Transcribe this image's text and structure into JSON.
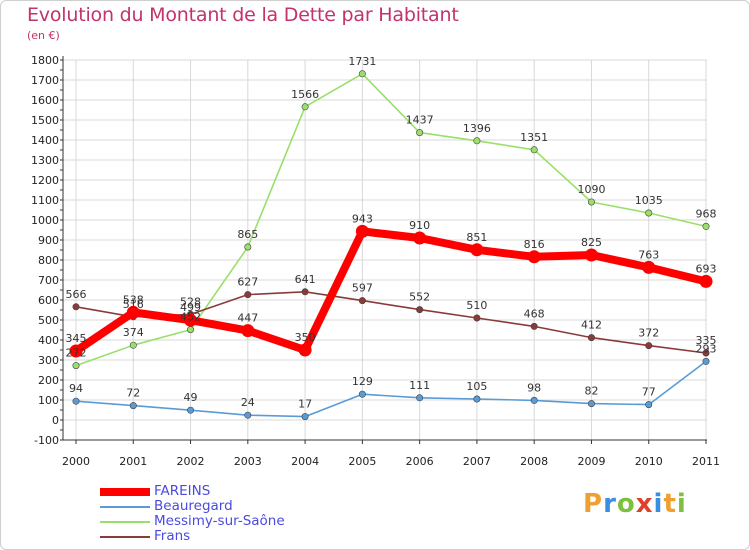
{
  "header": {
    "title": "Evolution du Montant de la Dette par Habitant",
    "subtitle": "(en €)"
  },
  "logo": {
    "text": "Proxiti",
    "colors": [
      "#f0a030",
      "#3a8ee0",
      "#7cc040",
      "#e0402a",
      "#3a8ee0",
      "#f0a030",
      "#7cc040"
    ]
  },
  "chart_data": {
    "type": "line",
    "title": "Evolution du Montant de la Dette par Habitant",
    "subtitle": "(en €)",
    "x": [
      "2000",
      "2001",
      "2002",
      "2003",
      "2004",
      "2005",
      "2006",
      "2007",
      "2008",
      "2009",
      "2010",
      "2011"
    ],
    "ylim": [
      -100,
      1800
    ],
    "yticks": [
      -100,
      0,
      100,
      200,
      300,
      400,
      500,
      600,
      700,
      800,
      900,
      1000,
      1100,
      1200,
      1300,
      1400,
      1500,
      1600,
      1700,
      1800
    ],
    "grid": true,
    "legend_position": "bottom-left",
    "series": [
      {
        "name": "FAREINS",
        "color": "#ff0000",
        "values": [
          345,
          538,
          499,
          447,
          350,
          943,
          910,
          851,
          816,
          825,
          763,
          693
        ]
      },
      {
        "name": "Beauregard",
        "color": "#5b9bd5",
        "values": [
          94,
          72,
          49,
          24,
          17,
          129,
          111,
          105,
          98,
          82,
          77,
          293
        ]
      },
      {
        "name": "Messimy-sur-Saône",
        "color": "#9adf6a",
        "values": [
          272,
          374,
          452,
          865,
          1566,
          1731,
          1437,
          1396,
          1351,
          1090,
          1035,
          968
        ]
      },
      {
        "name": "Frans",
        "color": "#8b3a3a",
        "values": [
          566,
          516,
          528,
          627,
          641,
          597,
          552,
          510,
          468,
          412,
          372,
          335
        ]
      }
    ]
  }
}
